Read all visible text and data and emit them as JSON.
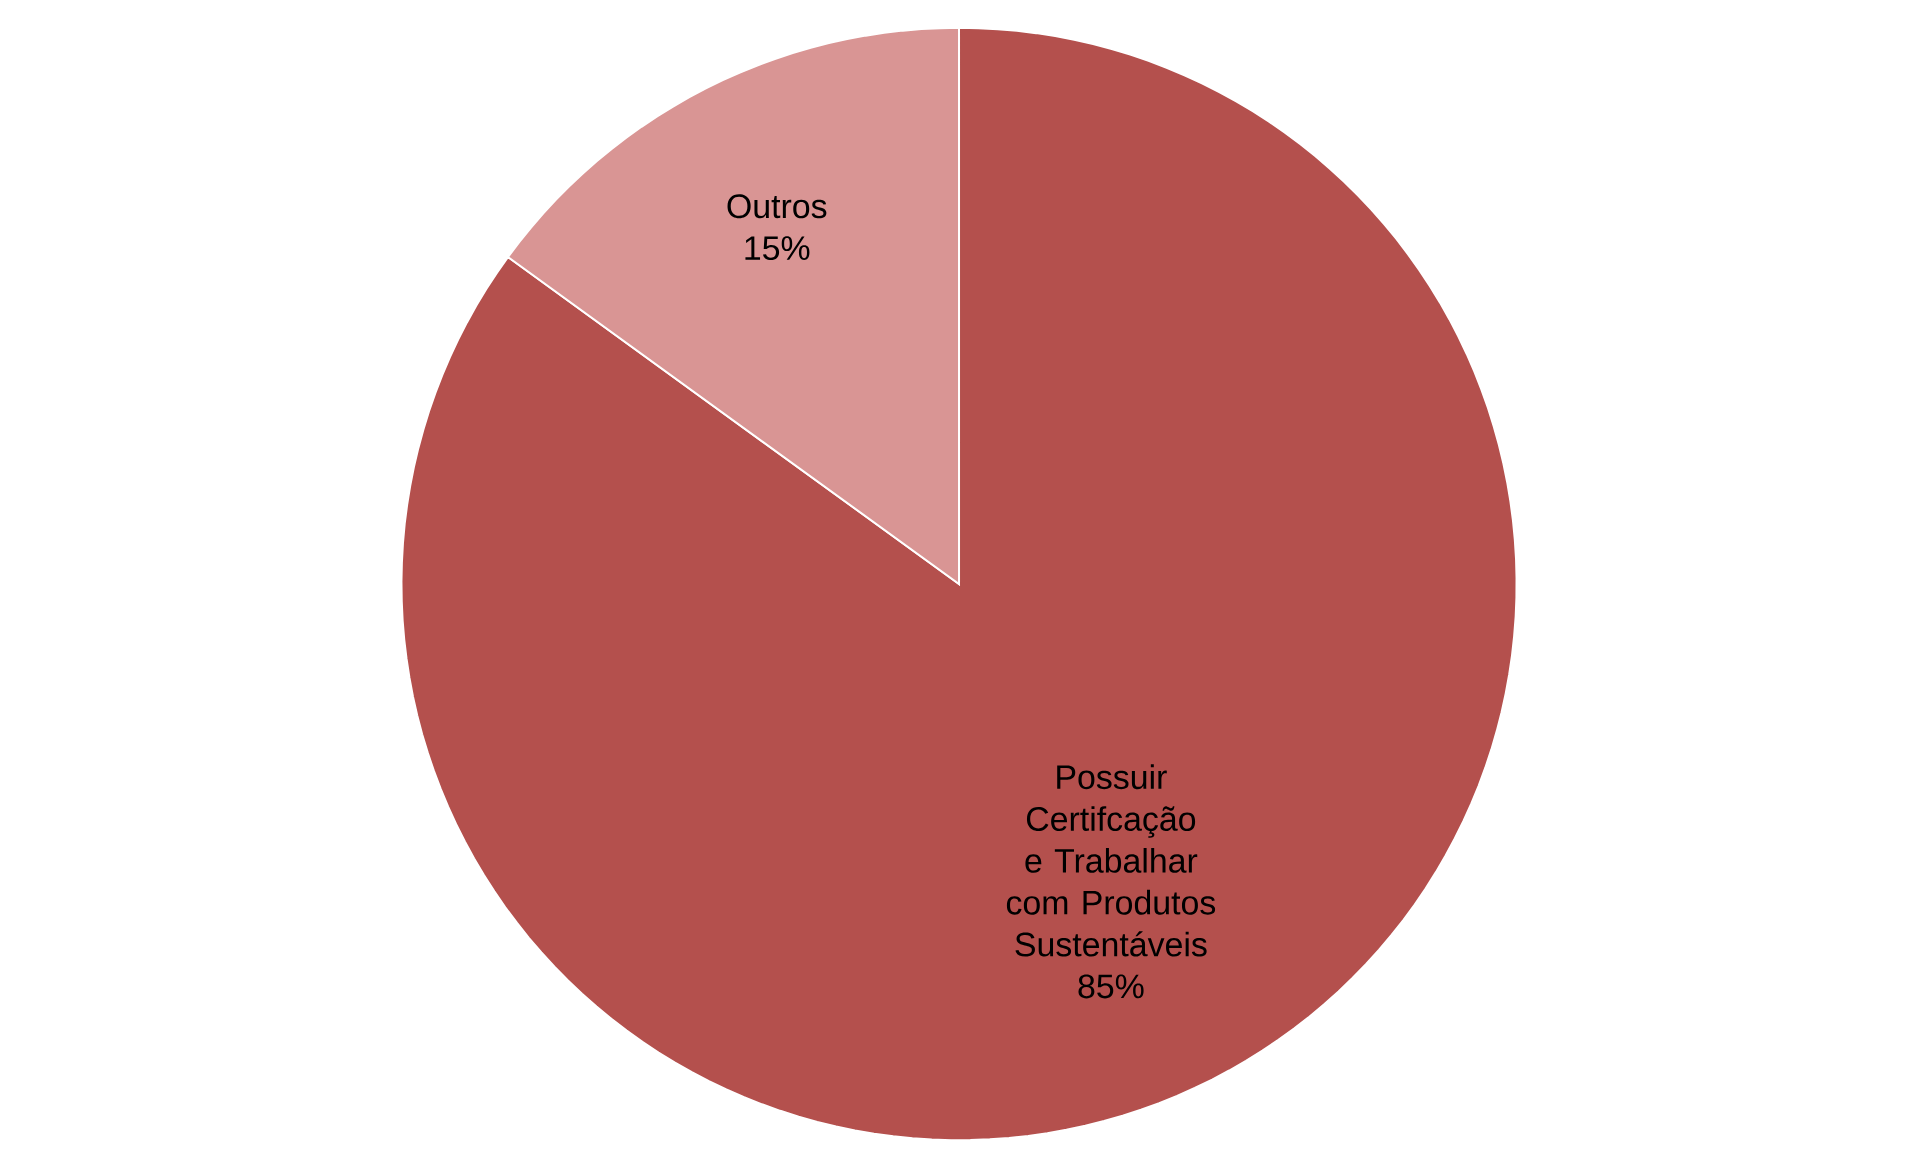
{
  "chart_data": {
    "type": "pie",
    "categories": [
      "Possuir Certifcação e Trabalhar com Produtos Sustentáveis",
      "Outros"
    ],
    "values": [
      85,
      15
    ],
    "colors": [
      "#b4504d",
      "#d99594"
    ],
    "value_labels": [
      "85%",
      "15%"
    ]
  }
}
